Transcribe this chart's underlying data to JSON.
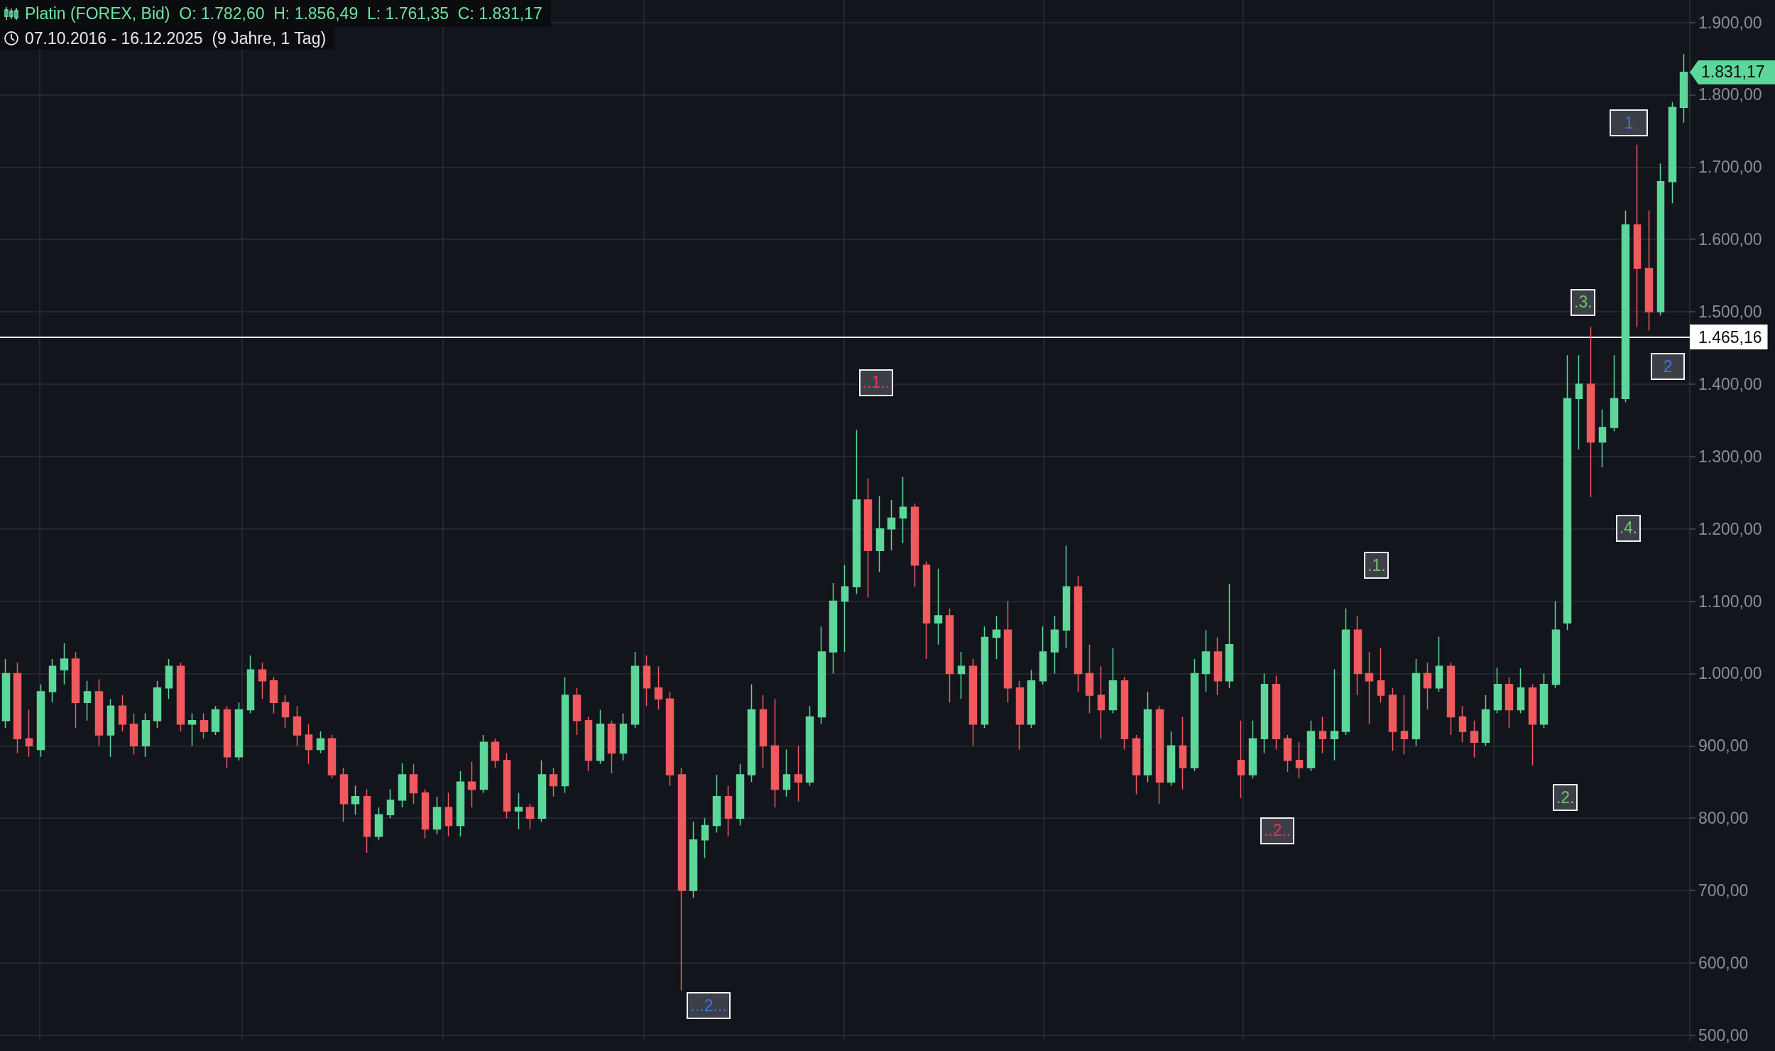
{
  "chart_data": {
    "type": "candlestick",
    "title": "Platin (FOREX, Bid)  O: 1.782,60  H: 1.856,49  L: 1.761,35  C: 1.831,17",
    "subtitle": "07.10.2016 - 16.12.2025  (9 Jahre, 1 Tag)",
    "categories": [
      null,
      null,
      null,
      null,
      null,
      null,
      null,
      null,
      null,
      null,
      null,
      null,
      null,
      null,
      null,
      null,
      null,
      null,
      null,
      null,
      null,
      null,
      null,
      null,
      null,
      null,
      null,
      null,
      null,
      null,
      null,
      null,
      null,
      null,
      null,
      null,
      null,
      null,
      null,
      null,
      null,
      null,
      null,
      null,
      null,
      null,
      null,
      null,
      null,
      null,
      null,
      null,
      null,
      null,
      null,
      null,
      null,
      null,
      null,
      null,
      null,
      null,
      null,
      null,
      null,
      null,
      null,
      null,
      null,
      null,
      null,
      null,
      null,
      null,
      null,
      null,
      null,
      null,
      null,
      null,
      null,
      null,
      null,
      null,
      null,
      null,
      null,
      null,
      null,
      null,
      null,
      null,
      null,
      null,
      null,
      null,
      null,
      null,
      null,
      null,
      null,
      null,
      null,
      null,
      null,
      null,
      null,
      null,
      null,
      null,
      null,
      null,
      null,
      null,
      null,
      null,
      null,
      null,
      null,
      null,
      null,
      null,
      null,
      null,
      null,
      null,
      null,
      null,
      null,
      null,
      null,
      null,
      null,
      null,
      null,
      null,
      null,
      null,
      null,
      null,
      null,
      null,
      null,
      null,
      null
    ],
    "ohlc": [
      [
        935,
        1020,
        925,
        1000
      ],
      [
        1000,
        1015,
        890,
        910
      ],
      [
        910,
        950,
        885,
        900
      ],
      [
        895,
        985,
        885,
        975
      ],
      [
        975,
        1020,
        960,
        1010
      ],
      [
        1005,
        1042,
        985,
        1020
      ],
      [
        1020,
        1030,
        925,
        960
      ],
      [
        960,
        990,
        935,
        975
      ],
      [
        975,
        992,
        900,
        915
      ],
      [
        915,
        965,
        885,
        955
      ],
      [
        955,
        970,
        920,
        930
      ],
      [
        930,
        945,
        888,
        900
      ],
      [
        900,
        945,
        885,
        935
      ],
      [
        935,
        990,
        925,
        980
      ],
      [
        980,
        1020,
        965,
        1010
      ],
      [
        1010,
        1015,
        920,
        930
      ],
      [
        930,
        945,
        900,
        935
      ],
      [
        935,
        945,
        910,
        920
      ],
      [
        920,
        955,
        915,
        950
      ],
      [
        950,
        955,
        870,
        885
      ],
      [
        885,
        960,
        880,
        950
      ],
      [
        950,
        1025,
        945,
        1005
      ],
      [
        1005,
        1015,
        965,
        990
      ],
      [
        990,
        995,
        945,
        960
      ],
      [
        960,
        970,
        925,
        940
      ],
      [
        940,
        955,
        900,
        915
      ],
      [
        915,
        930,
        875,
        895
      ],
      [
        895,
        920,
        890,
        910
      ],
      [
        910,
        915,
        855,
        860
      ],
      [
        860,
        870,
        795,
        820
      ],
      [
        820,
        845,
        805,
        830
      ],
      [
        830,
        840,
        752,
        775
      ],
      [
        775,
        815,
        770,
        805
      ],
      [
        805,
        840,
        800,
        825
      ],
      [
        825,
        876,
        815,
        860
      ],
      [
        860,
        875,
        820,
        835
      ],
      [
        835,
        840,
        772,
        785
      ],
      [
        785,
        830,
        778,
        815
      ],
      [
        815,
        835,
        775,
        790
      ],
      [
        790,
        865,
        775,
        850
      ],
      [
        850,
        878,
        815,
        840
      ],
      [
        840,
        915,
        835,
        905
      ],
      [
        905,
        910,
        870,
        880
      ],
      [
        880,
        890,
        800,
        810
      ],
      [
        810,
        835,
        785,
        815
      ],
      [
        815,
        820,
        785,
        800
      ],
      [
        800,
        880,
        795,
        860
      ],
      [
        860,
        870,
        830,
        845
      ],
      [
        845,
        995,
        835,
        970
      ],
      [
        970,
        980,
        915,
        935
      ],
      [
        935,
        940,
        865,
        880
      ],
      [
        880,
        950,
        875,
        930
      ],
      [
        930,
        935,
        862,
        890
      ],
      [
        890,
        945,
        880,
        930
      ],
      [
        930,
        1030,
        925,
        1010
      ],
      [
        1010,
        1025,
        955,
        980
      ],
      [
        980,
        1010,
        950,
        965
      ],
      [
        965,
        975,
        845,
        860
      ],
      [
        860,
        870,
        562,
        700
      ],
      [
        700,
        795,
        690,
        770
      ],
      [
        770,
        800,
        745,
        790
      ],
      [
        790,
        860,
        780,
        830
      ],
      [
        830,
        845,
        775,
        800
      ],
      [
        800,
        875,
        790,
        860
      ],
      [
        860,
        985,
        850,
        950
      ],
      [
        950,
        970,
        870,
        900
      ],
      [
        900,
        965,
        815,
        840
      ],
      [
        840,
        895,
        830,
        860
      ],
      [
        860,
        900,
        823,
        850
      ],
      [
        850,
        955,
        845,
        940
      ],
      [
        940,
        1065,
        930,
        1030
      ],
      [
        1030,
        1125,
        1000,
        1100
      ],
      [
        1100,
        1150,
        1030,
        1120
      ],
      [
        1120,
        1337,
        1110,
        1240
      ],
      [
        1240,
        1270,
        1105,
        1170
      ],
      [
        1170,
        1245,
        1140,
        1200
      ],
      [
        1200,
        1240,
        1170,
        1215
      ],
      [
        1215,
        1272,
        1180,
        1230
      ],
      [
        1230,
        1235,
        1120,
        1150
      ],
      [
        1150,
        1155,
        1020,
        1070
      ],
      [
        1070,
        1145,
        1040,
        1080
      ],
      [
        1080,
        1090,
        960,
        1000
      ],
      [
        1000,
        1030,
        965,
        1010
      ],
      [
        1010,
        1020,
        900,
        930
      ],
      [
        930,
        1065,
        925,
        1050
      ],
      [
        1050,
        1080,
        1020,
        1060
      ],
      [
        1060,
        1100,
        960,
        980
      ],
      [
        980,
        990,
        895,
        930
      ],
      [
        930,
        1005,
        925,
        990
      ],
      [
        990,
        1065,
        985,
        1030
      ],
      [
        1030,
        1080,
        1000,
        1060
      ],
      [
        1060,
        1177,
        1035,
        1120
      ],
      [
        1120,
        1135,
        975,
        1000
      ],
      [
        1000,
        1040,
        945,
        970
      ],
      [
        970,
        1010,
        910,
        950
      ],
      [
        950,
        1035,
        945,
        990
      ],
      [
        990,
        995,
        895,
        910
      ],
      [
        910,
        915,
        833,
        860
      ],
      [
        860,
        975,
        850,
        950
      ],
      [
        950,
        955,
        820,
        850
      ],
      [
        850,
        920,
        845,
        900
      ],
      [
        900,
        940,
        840,
        870
      ],
      [
        870,
        1020,
        865,
        1000
      ],
      [
        1000,
        1060,
        975,
        1030
      ],
      [
        1030,
        1050,
        970,
        990
      ],
      [
        990,
        1124,
        980,
        1040
      ],
      [
        880,
        935,
        828,
        860
      ],
      [
        860,
        935,
        855,
        910
      ],
      [
        910,
        1000,
        890,
        985
      ],
      [
        985,
        997,
        895,
        910
      ],
      [
        910,
        915,
        864,
        880
      ],
      [
        880,
        905,
        855,
        870
      ],
      [
        870,
        935,
        865,
        920
      ],
      [
        920,
        940,
        890,
        910
      ],
      [
        910,
        1006,
        880,
        920
      ],
      [
        920,
        1090,
        915,
        1060
      ],
      [
        1060,
        1080,
        970,
        1000
      ],
      [
        1000,
        1030,
        930,
        990
      ],
      [
        990,
        1035,
        960,
        970
      ],
      [
        970,
        980,
        893,
        920
      ],
      [
        920,
        970,
        888,
        910
      ],
      [
        910,
        1020,
        900,
        1000
      ],
      [
        1000,
        1015,
        950,
        980
      ],
      [
        980,
        1051,
        975,
        1010
      ],
      [
        1010,
        1015,
        915,
        940
      ],
      [
        940,
        955,
        905,
        920
      ],
      [
        920,
        935,
        884,
        905
      ],
      [
        905,
        970,
        900,
        950
      ],
      [
        950,
        1008,
        945,
        985
      ],
      [
        985,
        995,
        925,
        950
      ],
      [
        950,
        1007,
        945,
        980
      ],
      [
        980,
        985,
        873,
        930
      ],
      [
        930,
        1000,
        925,
        985
      ],
      [
        985,
        1100,
        980,
        1060
      ],
      [
        1070,
        1440,
        1060,
        1380
      ],
      [
        1380,
        1440,
        1310,
        1400
      ],
      [
        1400,
        1479,
        1244,
        1320
      ],
      [
        1320,
        1365,
        1285,
        1340
      ],
      [
        1340,
        1440,
        1335,
        1380
      ],
      [
        1380,
        1640,
        1375,
        1620
      ],
      [
        1620,
        1731,
        1479,
        1560
      ],
      [
        1560,
        1640,
        1474,
        1500
      ],
      [
        1500,
        1705,
        1495,
        1680
      ],
      [
        1680,
        1790,
        1650,
        1782.6
      ],
      [
        1782.6,
        1856.49,
        1761.35,
        1831.17
      ]
    ],
    "colors": [
      "#5cd699",
      "#f0595e",
      "#f0595e",
      "#5cd699",
      "#5cd699",
      "#5cd699",
      "#f0595e",
      "#5cd699",
      "#f0595e",
      "#5cd699",
      "#f0595e",
      "#f0595e",
      "#5cd699",
      "#5cd699",
      "#5cd699",
      "#f0595e",
      "#5cd699",
      "#f0595e",
      "#5cd699",
      "#f0595e",
      "#5cd699",
      "#5cd699",
      "#f0595e",
      "#f0595e",
      "#f0595e",
      "#f0595e",
      "#f0595e",
      "#5cd699",
      "#f0595e",
      "#f0595e",
      "#5cd699",
      "#f0595e",
      "#5cd699",
      "#5cd699",
      "#5cd699",
      "#f0595e",
      "#f0595e",
      "#5cd699",
      "#f0595e",
      "#5cd699",
      "#f0595e",
      "#5cd699",
      "#f0595e",
      "#f0595e",
      "#5cd699",
      "#f0595e",
      "#5cd699",
      "#f0595e",
      "#5cd699",
      "#f0595e",
      "#f0595e",
      "#5cd699",
      "#f0595e",
      "#5cd699",
      "#5cd699",
      "#f0595e",
      "#f0595e",
      "#f0595e",
      "#f0595e",
      "#5cd699",
      "#5cd699",
      "#5cd699",
      "#f0595e",
      "#5cd699",
      "#5cd699",
      "#f0595e",
      "#f0595e",
      "#5cd699",
      "#f0595e",
      "#5cd699",
      "#5cd699",
      "#5cd699",
      "#5cd699",
      "#5cd699",
      "#f0595e",
      "#5cd699",
      "#5cd699",
      "#5cd699",
      "#f0595e",
      "#f0595e",
      "#5cd699",
      "#f0595e",
      "#5cd699",
      "#f0595e",
      "#5cd699",
      "#5cd699",
      "#f0595e",
      "#f0595e",
      "#5cd699",
      "#5cd699",
      "#5cd699",
      "#5cd699",
      "#f0595e",
      "#f0595e",
      "#f0595e",
      "#5cd699",
      "#f0595e",
      "#f0595e",
      "#5cd699",
      "#f0595e",
      "#5cd699",
      "#f0595e",
      "#5cd699",
      "#5cd699",
      "#f0595e",
      "#5cd699",
      "#f0595e",
      "#5cd699",
      "#5cd699",
      "#f0595e",
      "#f0595e",
      "#f0595e",
      "#5cd699",
      "#f0595e",
      "#5cd699",
      "#5cd699",
      "#f0595e",
      "#f0595e",
      "#f0595e",
      "#f0595e",
      "#f0595e",
      "#5cd699",
      "#f0595e",
      "#5cd699",
      "#f0595e",
      "#f0595e",
      "#f0595e",
      "#5cd699",
      "#5cd699",
      "#f0595e",
      "#5cd699",
      "#f0595e",
      "#5cd699",
      "#5cd699",
      "#5cd699",
      "#5cd699",
      "#f0595e",
      "#5cd699",
      "#5cd699",
      "#5cd699",
      "#f0595e",
      "#f0595e",
      "#5cd699",
      "#5cd699",
      "#5cd699"
    ],
    "ylim": [
      492,
      1931
    ],
    "yticks": [
      {
        "value": 500,
        "label": "500,00"
      },
      {
        "value": 600,
        "label": "600,00"
      },
      {
        "value": 700,
        "label": "700,00"
      },
      {
        "value": 800,
        "label": "800,00"
      },
      {
        "value": 900,
        "label": "900,00"
      },
      {
        "value": 1000,
        "label": "1.000,00"
      },
      {
        "value": 1100,
        "label": "1.100,00"
      },
      {
        "value": 1200,
        "label": "1.200,00"
      },
      {
        "value": 1300,
        "label": "1.300,00"
      },
      {
        "value": 1400,
        "label": "1.400,00"
      },
      {
        "value": 1500,
        "label": "1.500,00"
      },
      {
        "value": 1600,
        "label": "1.600,00"
      },
      {
        "value": 1700,
        "label": "1.700,00"
      },
      {
        "value": 1800,
        "label": "1.800,00"
      },
      {
        "value": 1900,
        "label": "1.900,00"
      }
    ],
    "ref_lines": [
      {
        "axis": "y",
        "value": 1465.16,
        "label": "1.465,16",
        "color": "#ffffff"
      }
    ],
    "annotations": [
      "...2...",
      "..1..",
      "..2..",
      ".1.",
      ".2.",
      ".3.",
      ".4.",
      "1",
      "2",
      "1.831,17"
    ],
    "grid": true,
    "tick_labels": "y"
  }
}
